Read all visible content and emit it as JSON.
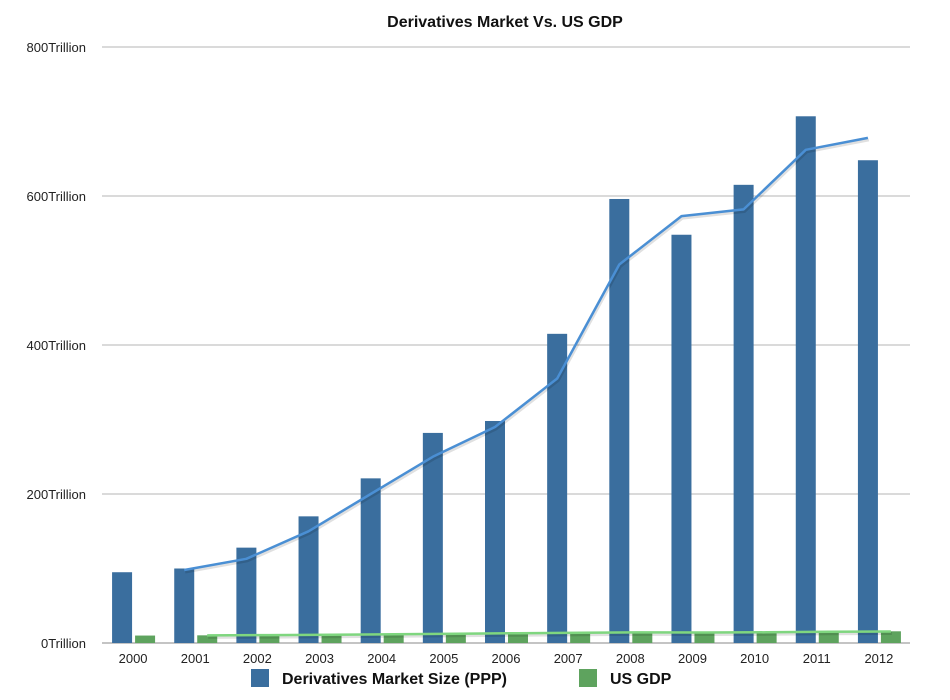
{
  "chart_data": {
    "type": "bar",
    "title": "Derivatives Market Vs. US GDP",
    "xlabel": "",
    "ylabel": "",
    "ylim": [
      0,
      800
    ],
    "yticks": [
      {
        "value": 0,
        "label": "0Trillion"
      },
      {
        "value": 200,
        "label": "200Trillion"
      },
      {
        "value": 400,
        "label": "400Trillion"
      },
      {
        "value": 600,
        "label": "600Trillion"
      },
      {
        "value": 800,
        "label": "800Trillion"
      }
    ],
    "categories": [
      "2000",
      "2001",
      "2002",
      "2003",
      "2004",
      "2005",
      "2006",
      "2007",
      "2008",
      "2009",
      "2010",
      "2011",
      "2012"
    ],
    "series": [
      {
        "name": "Derivatives Market Size (PPP)",
        "color": "#3a6e9e",
        "values": [
          95,
          100,
          128,
          170,
          221,
          282,
          298,
          415,
          596,
          548,
          615,
          707,
          648
        ]
      },
      {
        "name": "US GDP",
        "color": "#5ea35e",
        "values": [
          10,
          10.3,
          10.6,
          11.1,
          11.9,
          12.6,
          13.4,
          14.0,
          14.3,
          14.0,
          14.5,
          15.1,
          15.7
        ]
      }
    ],
    "trendlines": [
      {
        "series": "Derivatives Market Size (PPP)",
        "color": "#4a8fd4",
        "x_start": "2001",
        "values": [
          98,
          113,
          150,
          200,
          250,
          290,
          355,
          508,
          573,
          582,
          662,
          678
        ]
      },
      {
        "series": "US GDP",
        "color": "#7fd67f",
        "x_start": "2001",
        "values": [
          10.2,
          10.6,
          11.0,
          11.7,
          12.5,
          13.2,
          13.8,
          14.2,
          14.1,
          14.4,
          15.0,
          15.5
        ]
      }
    ],
    "grid": true,
    "legend": "bottom"
  }
}
